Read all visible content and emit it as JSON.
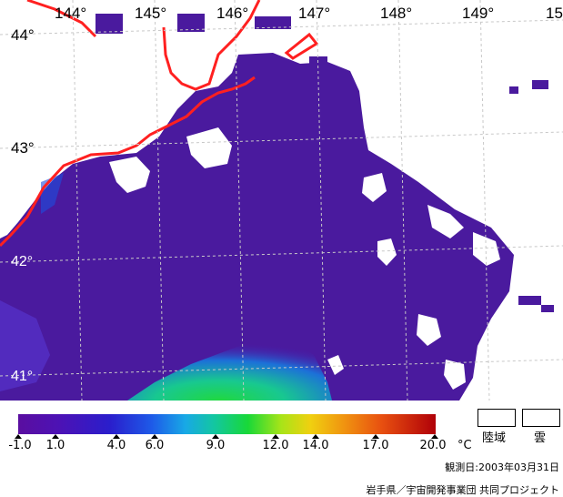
{
  "map": {
    "lon_labels": [
      "144°",
      "145°",
      "146°",
      "147°",
      "148°",
      "149°",
      "15"
    ],
    "lat_labels": [
      "44°",
      "43°",
      "42°",
      "41°"
    ]
  },
  "colors": {
    "sea": "#4f1aa0",
    "warm_water": "#18c87a",
    "coast": "#ff2020",
    "grid": "#bbbbbb"
  },
  "legend": {
    "scale_values": [
      "-1.0",
      "1.0",
      "4.0",
      "6.0",
      "9.0",
      "12.0",
      "14.0",
      "17.0",
      "20.0"
    ],
    "unit": "°C",
    "land_label": "陸域",
    "cloud_label": "雲"
  },
  "observation_date": "観測日:2003年03月31日",
  "credit": "岩手県／宇宙開発事業団 共同プロジェクト"
}
